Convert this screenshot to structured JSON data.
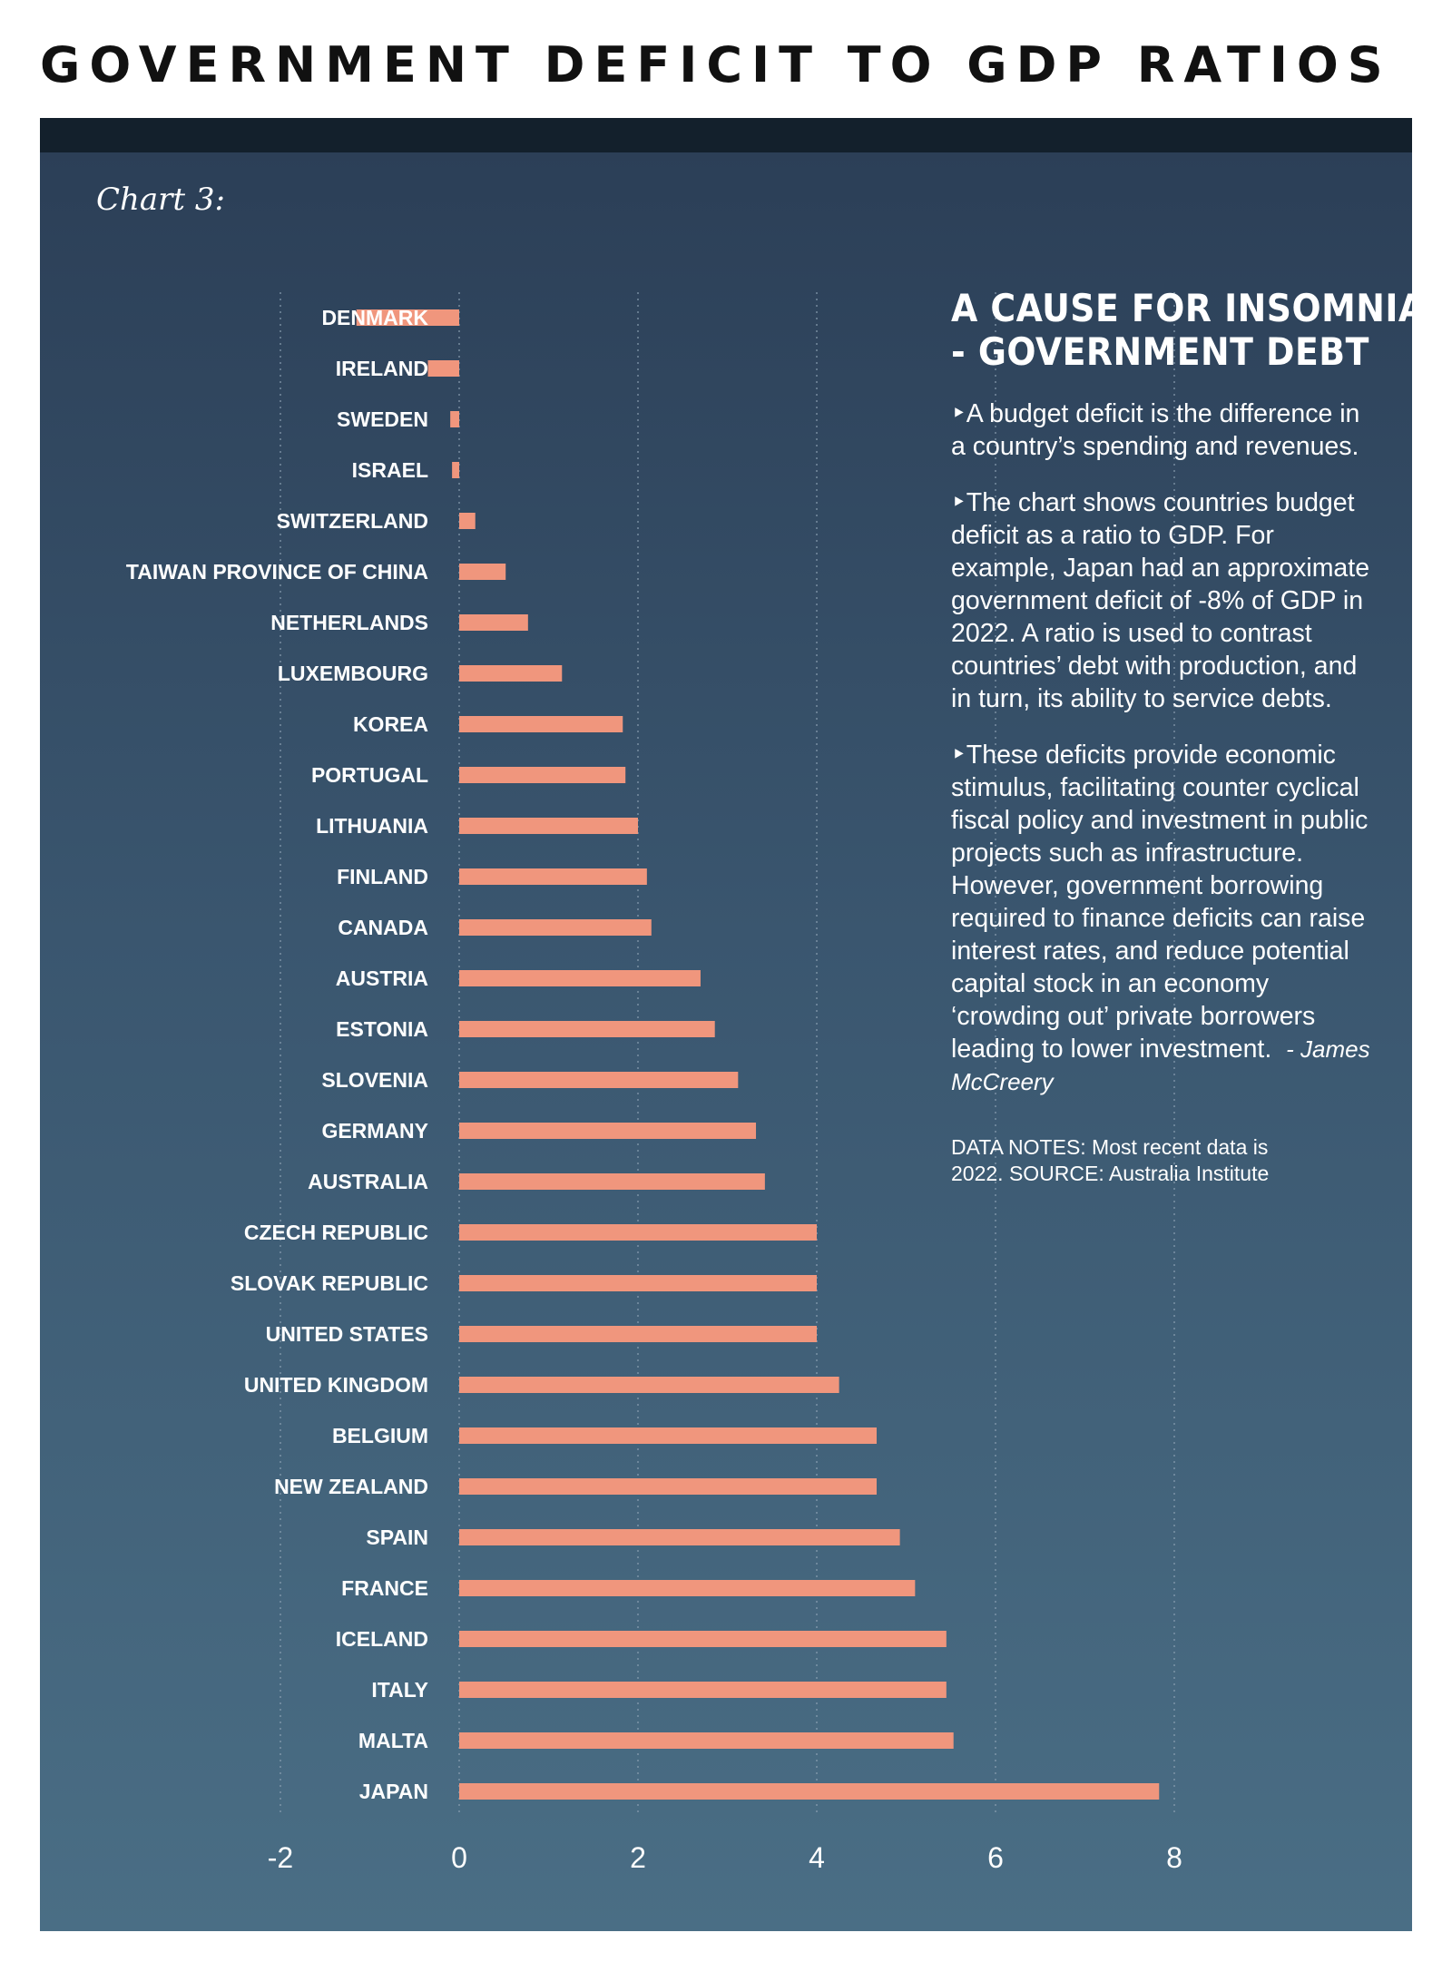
{
  "header": {
    "title": "GOVERNMENT DEFICIT TO GDP RATIOS"
  },
  "panel": {
    "chart_label": "Chart 3:"
  },
  "sidebar": {
    "heading_line1": "A CAUSE FOR INSOMNIA",
    "heading_line2": "- GOVERNMENT DEBT",
    "para1": "‣A budget deficit is the difference in a country’s spending and revenues.",
    "para2": "‣The chart shows countries budget deficit as a ratio to GDP. For example, Japan had an approximate government deficit of -8% of GDP in 2022. A ratio is used to contrast countries’ debt with production, and in turn, its ability to service debts.",
    "para3": "‣These deficits provide economic stimulus, facilitating counter cyclical fiscal policy and investment in public projects such as infrastructure. However, government borrowing required to finance deficits can raise interest rates, and reduce potential capital stock in an economy ‘crowding out’ private borrowers leading to lower investment.",
    "author": "- James McCreery",
    "notes_line1": "DATA NOTES: Most recent data is",
    "notes_line2": "2022. SOURCE: Australia Institute"
  },
  "colors": {
    "bar": "#f0967d",
    "text": "#ffffff",
    "grid": "#8fa3b5"
  },
  "chart_data": {
    "type": "bar",
    "orientation": "horizontal",
    "title": "GOVERNMENT DEFICIT TO GDP RATIOS",
    "categories": [
      "DENMARK",
      "IRELAND",
      "SWEDEN",
      "ISRAEL",
      "SWITZERLAND",
      "TAIWAN PROVINCE OF CHINA",
      "NETHERLANDS",
      "LUXEMBOURG",
      "KOREA",
      "PORTUGAL",
      "LITHUANIA",
      "FINLAND",
      "CANADA",
      "AUSTRIA",
      "ESTONIA",
      "SLOVENIA",
      "GERMANY",
      "AUSTRALIA",
      "CZECH REPUBLIC",
      "SLOVAK REPUBLIC",
      "UNITED STATES",
      "UNITED KINGDOM",
      "BELGIUM",
      "NEW ZEALAND",
      "SPAIN",
      "FRANCE",
      "ICELAND",
      "ITALY",
      "MALTA",
      "JAPAN"
    ],
    "values": [
      -1.15,
      -0.35,
      -0.1,
      -0.08,
      0.18,
      0.52,
      0.77,
      1.15,
      1.83,
      1.86,
      2.0,
      2.1,
      2.15,
      2.7,
      2.86,
      3.12,
      3.32,
      3.42,
      4.0,
      4.0,
      4.0,
      4.25,
      4.67,
      4.67,
      4.93,
      5.1,
      5.45,
      5.45,
      5.53,
      7.83
    ],
    "xlim": [
      -2,
      8
    ],
    "ticks": [
      -2,
      0,
      2,
      4,
      6,
      8
    ],
    "tick_labels": [
      "-2",
      "0",
      "2",
      "4",
      "6",
      "8"
    ],
    "grid": "vertical dotted",
    "xlabel": "",
    "ylabel": ""
  }
}
